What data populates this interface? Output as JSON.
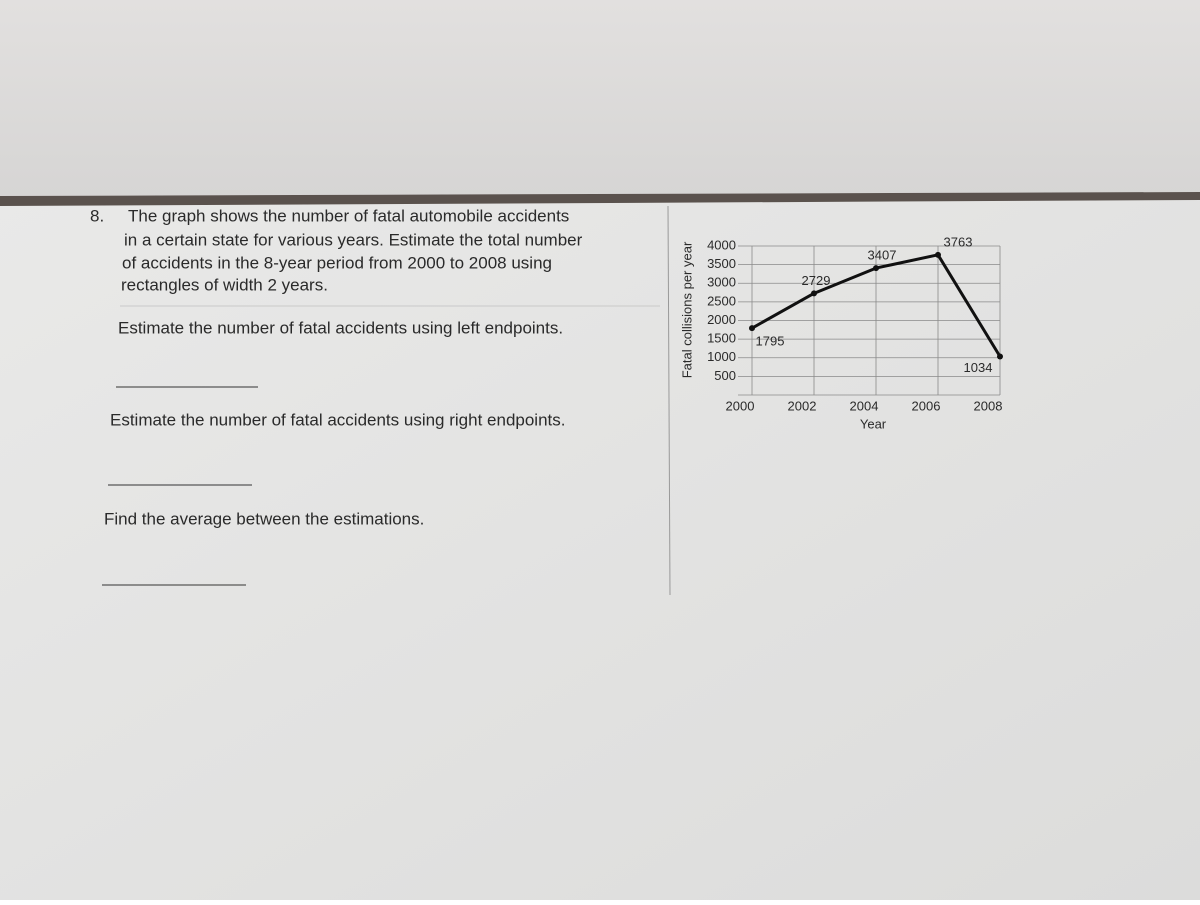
{
  "question": {
    "number": "8.",
    "lines": [
      "The graph shows the number of fatal automobile accidents",
      "in a certain state for various years. Estimate the total number",
      "of accidents in the 8-year period from 2000 to 2008 using",
      "rectangles of width 2 years."
    ],
    "prompts": [
      "Estimate the number of fatal accidents using left endpoints.",
      "Estimate the number of fatal accidents using right endpoints.",
      "Find the average between the estimations."
    ]
  },
  "chart_data": {
    "type": "line",
    "x_label": "Year",
    "y_label": "Fatal collisions per year",
    "x": [
      2000,
      2002,
      2004,
      2006,
      2008
    ],
    "values": [
      1795,
      2729,
      3407,
      3763,
      1034
    ],
    "color": "#111111",
    "xlim": [
      2000,
      2008
    ],
    "xticks": [
      2000,
      2002,
      2004,
      2006,
      2008
    ],
    "ylim": [
      0,
      4000
    ],
    "yticks": [
      500,
      1000,
      1500,
      2000,
      2500,
      3000,
      3500,
      4000
    ],
    "grid": true
  }
}
